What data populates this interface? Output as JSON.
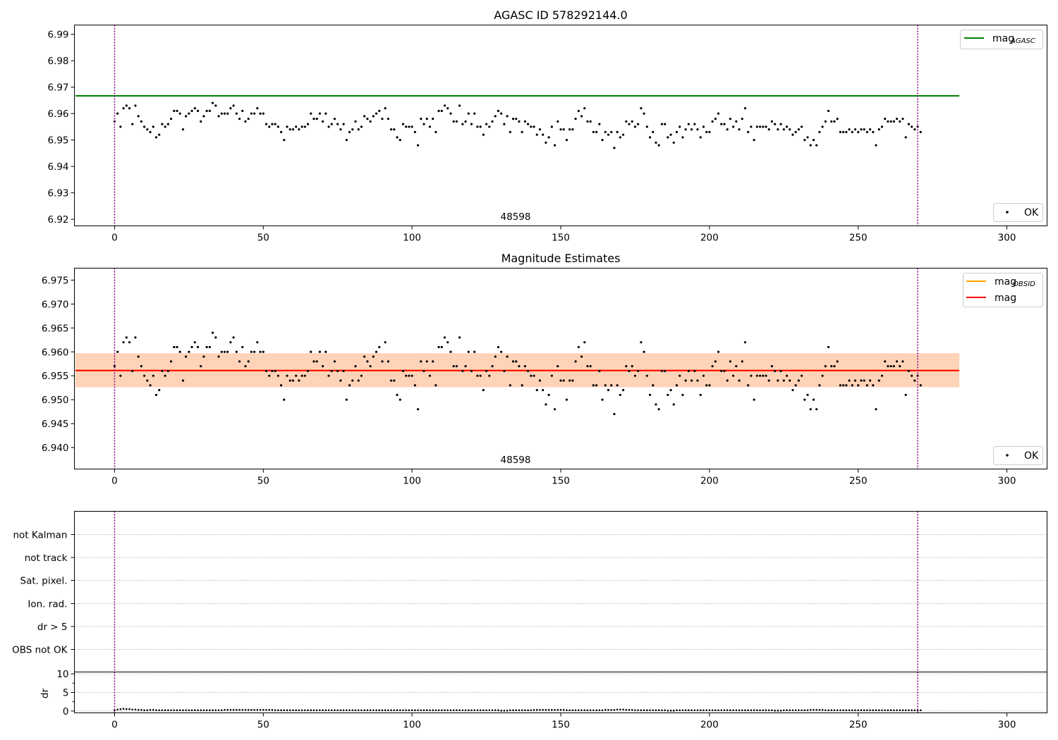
{
  "chart_data": [
    {
      "type": "scatter",
      "title": "AGASC ID 578292144.0",
      "xlim": [
        -13.5,
        313.5
      ],
      "ylim": [
        6.9175,
        6.9935
      ],
      "xticks": [
        0,
        50,
        100,
        150,
        200,
        250,
        300
      ],
      "yticks": [
        6.92,
        6.93,
        6.94,
        6.95,
        6.96,
        6.97,
        6.98,
        6.99
      ],
      "vlines": [
        0,
        270
      ],
      "hline": {
        "label": "mag",
        "label_sub": "AGASC",
        "value": 6.9667,
        "x_range": [
          0,
          284
        ],
        "color": "#008000"
      },
      "annotation": {
        "text": "48598",
        "x": 135
      },
      "legend_upper": "top-right",
      "legend_lower": {
        "label": "OK",
        "placement": "bottom-right"
      },
      "series": [
        {
          "name": "OK",
          "marker": "point",
          "color": "#000000",
          "values": [
            6.957,
            6.96,
            6.955,
            6.962,
            6.963,
            6.962,
            6.956,
            6.963,
            6.959,
            6.957,
            6.955,
            6.954,
            6.953,
            6.955,
            6.951,
            6.952,
            6.956,
            6.955,
            6.956,
            6.958,
            6.961,
            6.961,
            6.96,
            6.954,
            6.959,
            6.96,
            6.961,
            6.962,
            6.961,
            6.957,
            6.959,
            6.961,
            6.961,
            6.964,
            6.963,
            6.959,
            6.96,
            6.96,
            6.96,
            6.962,
            6.963,
            6.96,
            6.958,
            6.961,
            6.957,
            6.958,
            6.96,
            6.96,
            6.962,
            6.96,
            6.96,
            6.956,
            6.955,
            6.956,
            6.956,
            6.955,
            6.953,
            6.95,
            6.955,
            6.954,
            6.954,
            6.955,
            6.954,
            6.955,
            6.955,
            6.956,
            6.96,
            6.958,
            6.958,
            6.96,
            6.957,
            6.96,
            6.955,
            6.956,
            6.958,
            6.956,
            6.954,
            6.956,
            6.95,
            6.953,
            6.954,
            6.957,
            6.954,
            6.955,
            6.959,
            6.958,
            6.957,
            6.959,
            6.96,
            6.961,
            6.958,
            6.962,
            6.958,
            6.954,
            6.954,
            6.951,
            6.95,
            6.956,
            6.955,
            6.955,
            6.955,
            6.953,
            6.948,
            6.958,
            6.956,
            6.958,
            6.955,
            6.958,
            6.953,
            6.961,
            6.961,
            6.963,
            6.962,
            6.96,
            6.957,
            6.957,
            6.963,
            6.956,
            6.957,
            6.96,
            6.956,
            6.96,
            6.955,
            6.955,
            6.952,
            6.956,
            6.955,
            6.957,
            6.959,
            6.961,
            6.96,
            6.956,
            6.959,
            6.953,
            6.958,
            6.958,
            6.957,
            6.953,
            6.957,
            6.956,
            6.955,
            6.955,
            6.952,
            6.954,
            6.952,
            6.949,
            6.951,
            6.955,
            6.948,
            6.957,
            6.954,
            6.954,
            6.95,
            6.954,
            6.954,
            6.958,
            6.961,
            6.959,
            6.962,
            6.957,
            6.957,
            6.953,
            6.953,
            6.956,
            6.95,
            6.953,
            6.952,
            6.953,
            6.947,
            6.953,
            6.951,
            6.952,
            6.957,
            6.956,
            6.957,
            6.955,
            6.956,
            6.962,
            6.96,
            6.955,
            6.951,
            6.953,
            6.949,
            6.948,
            6.956,
            6.956,
            6.951,
            6.952,
            6.949,
            6.953,
            6.955,
            6.951,
            6.954,
            6.956,
            6.954,
            6.956,
            6.954,
            6.951,
            6.955,
            6.953,
            6.953,
            6.957,
            6.958,
            6.96,
            6.956,
            6.956,
            6.954,
            6.958,
            6.955,
            6.957,
            6.954,
            6.958,
            6.962,
            6.953,
            6.955,
            6.95,
            6.955,
            6.955,
            6.955,
            6.955,
            6.954,
            6.957,
            6.956,
            6.954,
            6.956,
            6.954,
            6.955,
            6.954,
            6.952,
            6.953,
            6.954,
            6.955,
            6.95,
            6.951,
            6.948,
            6.95,
            6.948,
            6.953,
            6.955,
            6.957,
            6.961,
            6.957,
            6.957,
            6.958,
            6.953,
            6.953,
            6.953,
            6.954,
            6.953,
            6.954,
            6.953,
            6.954,
            6.954,
            6.953,
            6.954,
            6.953,
            6.948,
            6.954,
            6.955,
            6.958,
            6.957,
            6.957,
            6.957,
            6.958,
            6.957,
            6.958,
            6.951,
            6.956,
            6.955,
            6.954,
            6.955,
            6.953
          ]
        }
      ]
    },
    {
      "type": "scatter",
      "title": "Magnitude Estimates",
      "xlim": [
        -13.5,
        313.5
      ],
      "ylim": [
        6.9355,
        6.9775
      ],
      "xticks": [
        0,
        50,
        100,
        150,
        200,
        250,
        300
      ],
      "yticks": [
        6.94,
        6.945,
        6.95,
        6.955,
        6.96,
        6.965,
        6.97,
        6.975
      ],
      "vlines": [
        0,
        270
      ],
      "bands": [
        {
          "y": [
            6.9526,
            6.9597
          ],
          "x_range": [
            0,
            284
          ],
          "color": "#ffc0cb",
          "opacity": 0.5
        },
        {
          "y": [
            6.9526,
            6.9597
          ],
          "x_range": [
            0,
            284
          ],
          "color": "#ffa500",
          "opacity": 0.2
        }
      ],
      "hlines": [
        {
          "label": "mag",
          "label_sub": "OBSID",
          "value": 6.9561,
          "color": "#ffa500"
        },
        {
          "label": "mag",
          "label_sub": "",
          "value": 6.9561,
          "color": "#ff0000"
        }
      ],
      "annotation": {
        "text": "48598",
        "x": 135
      },
      "legend_upper": "top-right",
      "legend_lower": {
        "label": "OK",
        "placement": "bottom-right"
      },
      "series": "same as panel 1"
    },
    {
      "type": "scatter",
      "ylabels": [
        "not Kalman",
        "not track",
        "Sat. pixel.",
        "Ion. rad.",
        "dr > 5",
        "OBS not OK"
      ],
      "flags_set": [],
      "vlines": [
        0,
        270
      ]
    },
    {
      "type": "scatter",
      "ylabel": "dr",
      "xlim": [
        -13.5,
        313.5
      ],
      "ylim": [
        -0.5,
        10.5
      ],
      "xticks": [
        0,
        50,
        100,
        150,
        200,
        250,
        300
      ],
      "yticks": [
        0,
        5,
        10
      ],
      "vlines": [
        0,
        270
      ],
      "dr_values": [
        0.2,
        0.4,
        0.5,
        0.6,
        0.5,
        0.5,
        0.4,
        0.4,
        0.3,
        0.3,
        0.2,
        0.2,
        0.3,
        0.3,
        0.2,
        0.2,
        0.2,
        0.2,
        0.2,
        0.2,
        0.2,
        0.2,
        0.2,
        0.2,
        0.2,
        0.2,
        0.2,
        0.2,
        0.2,
        0.2,
        0.2,
        0.2,
        0.2,
        0.2,
        0.2,
        0.2,
        0.2,
        0.3,
        0.3,
        0.3,
        0.3,
        0.3,
        0.3,
        0.3,
        0.3,
        0.3,
        0.3,
        0.3,
        0.3,
        0.3,
        0.3,
        0.3,
        0.3,
        0.3,
        0.2,
        0.2,
        0.2,
        0.2,
        0.2,
        0.2,
        0.2,
        0.2,
        0.2,
        0.2,
        0.2,
        0.2,
        0.2,
        0.2,
        0.2,
        0.2,
        0.2,
        0.2,
        0.2,
        0.2,
        0.2,
        0.2,
        0.2,
        0.2,
        0.2,
        0.2,
        0.2,
        0.2,
        0.2,
        0.2,
        0.2,
        0.2,
        0.2,
        0.2,
        0.2,
        0.2,
        0.2,
        0.2,
        0.2,
        0.2,
        0.2,
        0.2,
        0.2,
        0.2,
        0.2,
        0.2,
        0.2,
        0.2,
        0.2,
        0.2,
        0.2,
        0.2,
        0.2,
        0.2,
        0.2,
        0.2,
        0.2,
        0.2,
        0.2,
        0.2,
        0.2,
        0.2,
        0.2,
        0.2,
        0.2,
        0.2,
        0.2,
        0.2,
        0.2,
        0.2,
        0.2,
        0.2,
        0.2,
        0.2,
        0.2,
        0.2,
        0.1,
        0.1,
        0.1,
        0.2,
        0.2,
        0.2,
        0.2,
        0.2,
        0.2,
        0.2,
        0.2,
        0.3,
        0.3,
        0.3,
        0.3,
        0.3,
        0.3,
        0.3,
        0.3,
        0.3,
        0.3,
        0.3,
        0.2,
        0.2,
        0.2,
        0.2,
        0.2,
        0.2,
        0.2,
        0.2,
        0.2,
        0.2,
        0.2,
        0.2,
        0.2,
        0.3,
        0.3,
        0.3,
        0.3,
        0.4,
        0.4,
        0.4,
        0.3,
        0.3,
        0.3,
        0.2,
        0.2,
        0.2,
        0.2,
        0.2,
        0.2,
        0.2,
        0.2,
        0.2,
        0.2,
        0.2,
        0.1,
        0.1,
        0.1,
        0.2,
        0.2,
        0.2,
        0.2,
        0.2,
        0.2,
        0.2,
        0.2,
        0.2,
        0.2,
        0.2,
        0.2,
        0.2,
        0.2,
        0.2,
        0.2,
        0.2,
        0.2,
        0.2,
        0.2,
        0.2,
        0.2,
        0.2,
        0.2,
        0.2,
        0.2,
        0.2,
        0.2,
        0.2,
        0.2,
        0.2,
        0.2,
        0.2,
        0.1,
        0.1,
        0.1,
        0.2,
        0.2,
        0.2,
        0.2,
        0.2,
        0.2,
        0.2,
        0.2,
        0.2,
        0.3,
        0.3,
        0.3,
        0.3,
        0.3,
        0.2,
        0.2,
        0.2,
        0.2,
        0.2,
        0.2,
        0.2,
        0.2,
        0.2,
        0.2,
        0.2,
        0.2,
        0.2,
        0.2,
        0.2,
        0.2,
        0.2,
        0.2,
        0.2,
        0.2,
        0.2,
        0.2,
        0.2,
        0.2,
        0.2,
        0.2,
        0.2,
        0.2,
        0.2,
        0.2,
        0.2,
        0.2,
        0.2
      ]
    }
  ],
  "colors": {
    "vline": "#800080",
    "axes": "#000000",
    "grid": "#b0b0b0",
    "points": "#000000",
    "legend_border": "#cccccc"
  }
}
